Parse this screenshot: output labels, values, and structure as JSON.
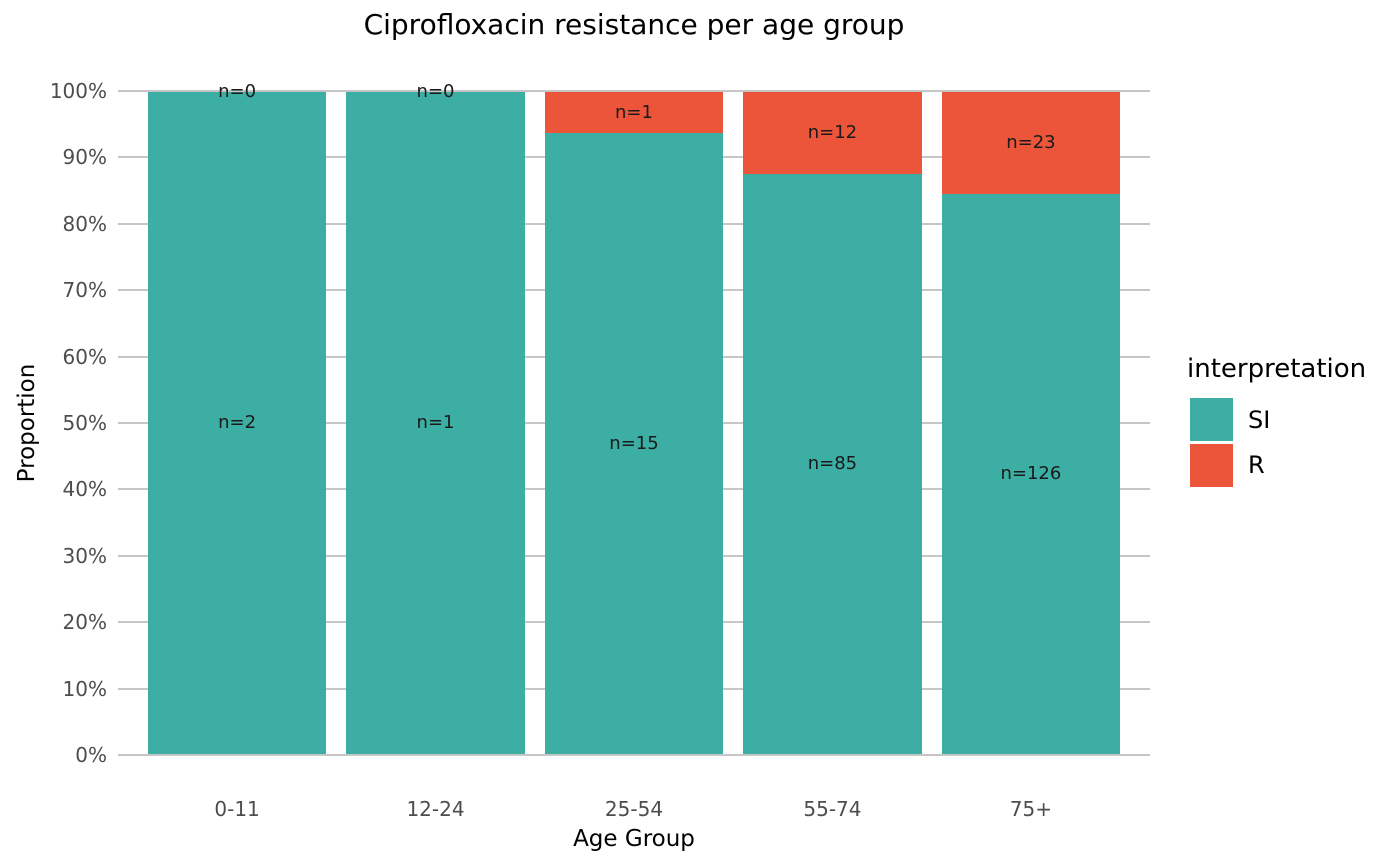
{
  "chart_data": {
    "type": "bar",
    "variant": "stacked-100-percent",
    "title": "Ciprofloxacin resistance per age group",
    "xlabel": "Age Group",
    "ylabel": "Proportion",
    "categories": [
      "0-11",
      "12-24",
      "25-54",
      "55-74",
      "75+"
    ],
    "series": [
      {
        "name": "SI",
        "color": "#3CAEA3",
        "counts": [
          2,
          1,
          15,
          85,
          126
        ],
        "labels": [
          "n=2",
          "n=1",
          "n=15",
          "n=85",
          "n=126"
        ],
        "proportions": [
          1.0,
          1.0,
          0.9375,
          0.8763,
          0.8456
        ]
      },
      {
        "name": "R",
        "color": "#ED553B",
        "counts": [
          0,
          0,
          1,
          12,
          23
        ],
        "labels": [
          "n=0",
          "n=0",
          "n=1",
          "n=12",
          "n=23"
        ],
        "proportions": [
          0.0,
          0.0,
          0.0625,
          0.1237,
          0.1544
        ]
      }
    ],
    "stack_order_top_to_bottom": [
      "R",
      "SI"
    ],
    "ylim": [
      0,
      1
    ],
    "y_ticks": [
      "0%",
      "10%",
      "20%",
      "30%",
      "40%",
      "50%",
      "60%",
      "70%",
      "80%",
      "90%",
      "100%"
    ],
    "grid": true,
    "legend": {
      "title": "interpretation",
      "position": "right",
      "entries": [
        {
          "label": "SI",
          "color": "#3CAEA3"
        },
        {
          "label": "R",
          "color": "#ED553B"
        }
      ]
    },
    "colors": {
      "grid": "#C6C6C6",
      "tick_text": "#4D4D4D",
      "title_text": "#000000",
      "bar_label_text": "#1A1A1A",
      "background": "#FFFFFF"
    }
  }
}
